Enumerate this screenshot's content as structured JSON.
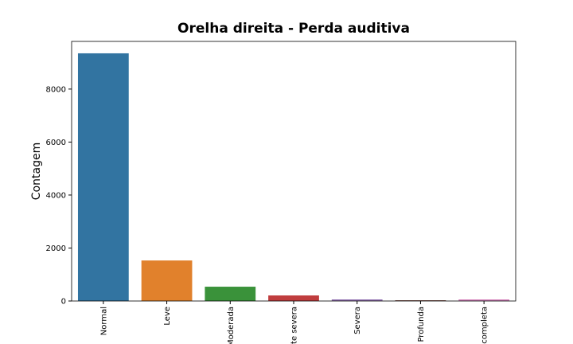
{
  "chart_data": {
    "type": "bar",
    "title": "Orelha direita - Perda auditiva",
    "ylabel": "Contagem",
    "categories": [
      "Normal",
      "Leve",
      "Moderada",
      "te severa",
      "Severa",
      "Profunda",
      "completa"
    ],
    "values": [
      9350,
      1530,
      540,
      210,
      60,
      30,
      60
    ],
    "colors": [
      "#3274a1",
      "#e1812c",
      "#3a923a",
      "#c03d3e",
      "#9372b2",
      "#845b53",
      "#d684bd"
    ],
    "ylim": [
      0,
      9800
    ],
    "yticks": [
      0,
      2000,
      4000,
      6000,
      8000
    ],
    "grid": false
  }
}
